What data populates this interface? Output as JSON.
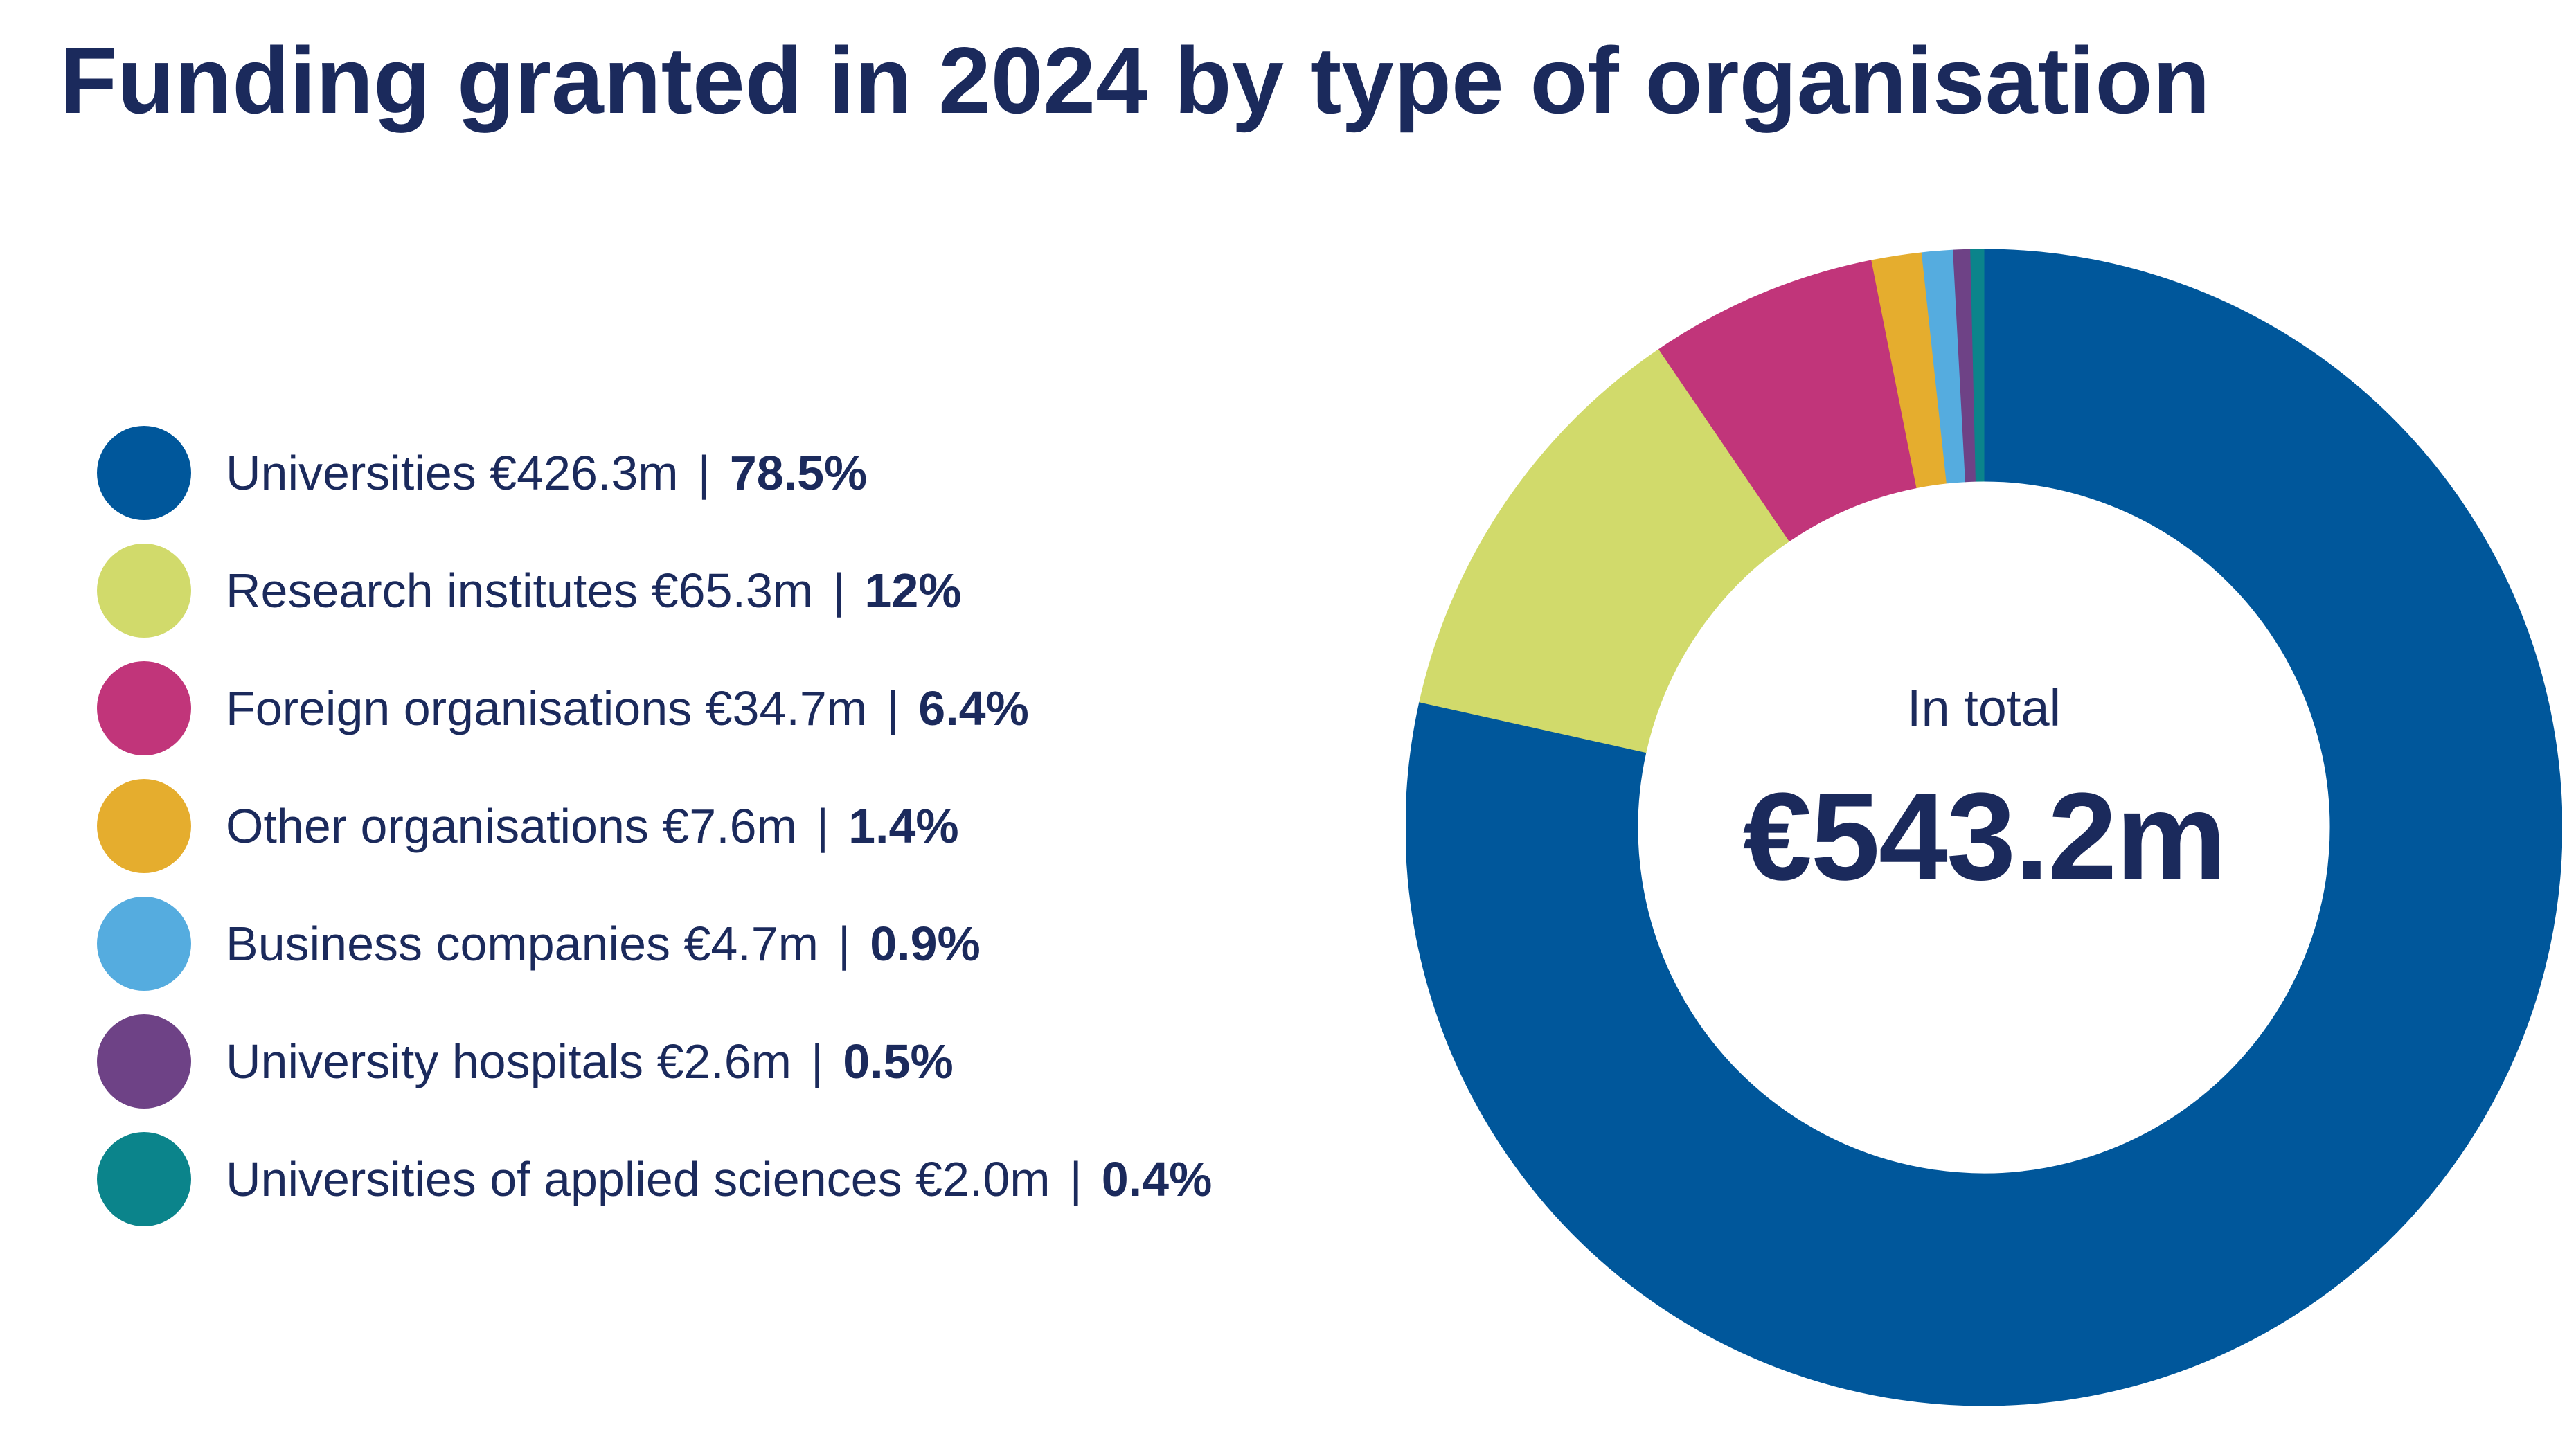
{
  "chart_data": {
    "type": "pie",
    "variant": "donut",
    "title": "Funding granted in 2024 by type of organisation",
    "center_caption": "In total",
    "center_value": "€543.2m",
    "legend_placement": "left",
    "slices": [
      {
        "label": "Universities €426.3m",
        "value": 426.3,
        "percent_label": "78.5%",
        "percent": 78.5,
        "color": "#00579b"
      },
      {
        "label": "Research institutes €65.3m",
        "value": 65.3,
        "percent_label": "12%",
        "percent": 12.0,
        "color": "#d1da6b"
      },
      {
        "label": "Foreign organisations €34.7m",
        "value": 34.7,
        "percent_label": "6.4%",
        "percent": 6.4,
        "color": "#c1357a"
      },
      {
        "label": "Other organisations €7.6m",
        "value": 7.6,
        "percent_label": "1.4%",
        "percent": 1.4,
        "color": "#e5ad2e"
      },
      {
        "label": "Business companies €4.7m",
        "value": 4.7,
        "percent_label": "0.9%",
        "percent": 0.9,
        "color": "#55acdf"
      },
      {
        "label": "University hospitals €2.6m",
        "value": 2.6,
        "percent_label": "0.5%",
        "percent": 0.5,
        "color": "#6e4286"
      },
      {
        "label": "Universities of applied sciences €2.0m",
        "value": 2.0,
        "percent_label": "0.4%",
        "percent": 0.4,
        "color": "#0b848b"
      }
    ],
    "separator": "|",
    "text_color": "#1b2a5c"
  }
}
